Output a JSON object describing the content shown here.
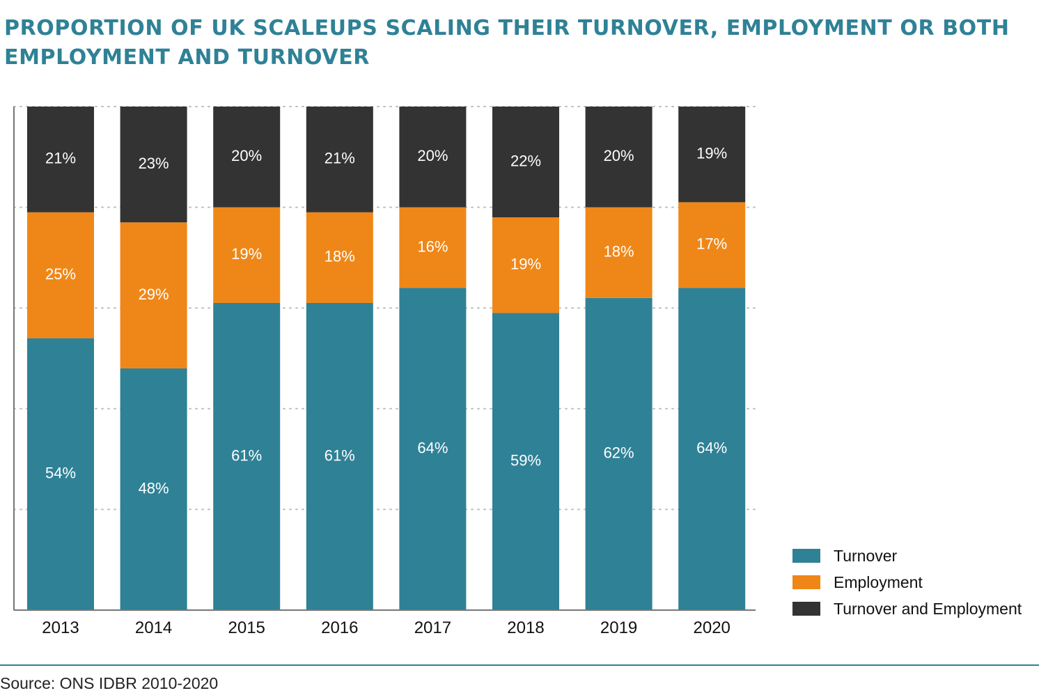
{
  "page": {
    "title": "PROPORTION OF UK SCALEUPS SCALING THEIR TURNOVER, EMPLOYMENT OR BOTH EMPLOYMENT AND TURNOVER",
    "source": "Source: ONS IDBR 2010-2020"
  },
  "colors": {
    "turnover": "#2f8196",
    "employment": "#ef8718",
    "both": "#333333",
    "title": "#2f8196",
    "grid": "#bdbdbd",
    "axis": "#777777"
  },
  "legend": [
    {
      "label": "Turnover"
    },
    {
      "label": "Employment"
    },
    {
      "label": "Turnover and Employment"
    }
  ],
  "chart_data": {
    "type": "bar",
    "stacked": true,
    "categories": [
      "2013",
      "2014",
      "2015",
      "2016",
      "2017",
      "2018",
      "2019",
      "2020"
    ],
    "series": [
      {
        "name": "Turnover",
        "values": [
          54,
          48,
          61,
          61,
          64,
          59,
          62,
          64
        ],
        "labels": [
          "54%",
          "48%",
          "61%",
          "61%",
          "64%",
          "59%",
          "62%",
          "64%"
        ]
      },
      {
        "name": "Employment",
        "values": [
          25,
          29,
          19,
          18,
          16,
          19,
          18,
          17
        ],
        "labels": [
          "25%",
          "29%",
          "19%",
          "18%",
          "16%",
          "19%",
          "18%",
          "17%"
        ]
      },
      {
        "name": "Turnover and Employment",
        "values": [
          21,
          23,
          20,
          21,
          20,
          22,
          20,
          19
        ],
        "labels": [
          "21%",
          "23%",
          "20%",
          "21%",
          "20%",
          "22%",
          "20%",
          "19%"
        ]
      }
    ],
    "ylim": [
      0,
      100
    ],
    "grid": true,
    "legend_position": "bottom-right"
  }
}
